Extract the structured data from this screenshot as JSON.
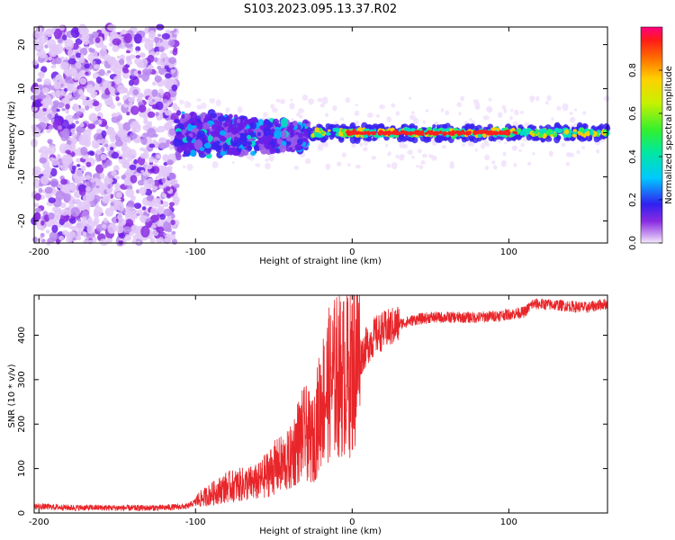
{
  "title": "S103.2023.095.13.37.R02",
  "colors": {
    "snr_line": "#e8262a",
    "axis": "#000000",
    "low_speckle": "#d9b8f5",
    "mid_speckle": "#8a2be2",
    "core_red": "#ff2020",
    "core_green": "#20e060"
  },
  "chart_data": [
    {
      "type": "heatmap",
      "name": "spectrogram",
      "xlabel": "Height of straight line (km)",
      "ylabel": "Frequency (Hz)",
      "xlim": [
        -203,
        163
      ],
      "ylim": [
        -25,
        24
      ],
      "xticks": [
        {
          "value": -200,
          "label": "-200"
        },
        {
          "value": -100,
          "label": "-100"
        },
        {
          "value": 0,
          "label": "0"
        },
        {
          "value": 100,
          "label": "100"
        }
      ],
      "yticks": [
        {
          "value": 20,
          "label": "20"
        },
        {
          "value": 10,
          "label": "10"
        },
        {
          "value": 0,
          "label": "0"
        },
        {
          "value": -10,
          "label": "-10"
        },
        {
          "value": -20,
          "label": "-20"
        }
      ],
      "regions": [
        {
          "description": "noise speckle",
          "x_range": [
            -203,
            -112
          ],
          "freq_range": [
            -25,
            24
          ]
        },
        {
          "description": "onset blob",
          "x_range": [
            -112,
            -28
          ],
          "freq_range": [
            -6,
            7
          ]
        },
        {
          "description": "narrow carrier",
          "x_range": [
            -28,
            163
          ],
          "freq_range": [
            -1.5,
            1.5
          ]
        }
      ],
      "colorbar": {
        "label": "Normalized spectral amplitude",
        "range": [
          0.0,
          1.0
        ],
        "ticks": [
          {
            "value": 0.0,
            "label": "0.0"
          },
          {
            "value": 0.2,
            "label": "0.2"
          },
          {
            "value": 0.4,
            "label": "0.4"
          },
          {
            "value": 0.6,
            "label": "0.6"
          },
          {
            "value": 0.8,
            "label": "0.8"
          }
        ]
      }
    },
    {
      "type": "line",
      "name": "snr",
      "xlabel": "Height of straight line (km)",
      "ylabel": "SNR (10 * v/v)",
      "xlim": [
        -203,
        163
      ],
      "ylim": [
        0,
        490
      ],
      "xticks": [
        {
          "value": -200,
          "label": "-200"
        },
        {
          "value": -100,
          "label": "-100"
        },
        {
          "value": 0,
          "label": "0"
        },
        {
          "value": 100,
          "label": "100"
        }
      ],
      "yticks": [
        {
          "value": 0,
          "label": "0"
        },
        {
          "value": 100,
          "label": "100"
        },
        {
          "value": 200,
          "label": "200"
        },
        {
          "value": 300,
          "label": "300"
        },
        {
          "value": 400,
          "label": "400"
        }
      ],
      "series": [
        {
          "name": "SNR",
          "x": [
            -203,
            -180,
            -160,
            -140,
            -120,
            -105,
            -100,
            -90,
            -80,
            -70,
            -60,
            -50,
            -40,
            -35,
            -30,
            -25,
            -20,
            -15,
            -10,
            -5,
            0,
            5,
            10,
            15,
            20,
            30,
            40,
            50,
            60,
            70,
            80,
            90,
            100,
            110,
            115,
            120,
            130,
            140,
            150,
            160,
            163
          ],
          "y": [
            15,
            12,
            12,
            11,
            12,
            15,
            25,
            40,
            55,
            60,
            65,
            95,
            110,
            150,
            170,
            150,
            230,
            270,
            290,
            290,
            300,
            350,
            380,
            400,
            410,
            425,
            435,
            440,
            440,
            440,
            440,
            443,
            447,
            452,
            470,
            470,
            468,
            465,
            462,
            470,
            470
          ]
        }
      ]
    }
  ]
}
